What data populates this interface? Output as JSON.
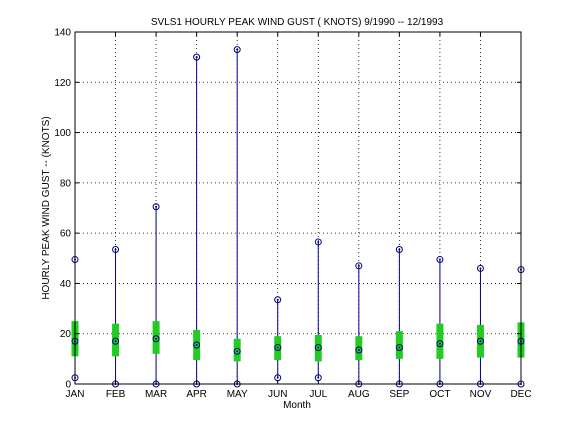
{
  "chart_data": {
    "type": "boxplot",
    "title": "SVLS1  HOURLY PEAK WIND GUST ( KNOTS) 9/1990 -- 12/1993",
    "xlabel": "Month",
    "ylabel": "HOURLY PEAK WIND GUST -- (KNOTS)",
    "ylim": [
      0,
      140
    ],
    "yticks": [
      0,
      20,
      40,
      60,
      80,
      100,
      120,
      140
    ],
    "grid": true,
    "categories": [
      "JAN",
      "FEB",
      "MAR",
      "APR",
      "MAY",
      "JUN",
      "JUL",
      "AUG",
      "SEP",
      "OCT",
      "NOV",
      "DEC"
    ],
    "min": [
      2.5,
      0,
      0,
      0,
      0,
      2.5,
      2.5,
      0,
      0,
      0,
      0,
      0
    ],
    "q1": [
      11,
      11,
      12,
      9.5,
      9,
      9.5,
      9,
      9.5,
      10,
      10,
      10.5,
      10.5
    ],
    "median": [
      17,
      17,
      18,
      15.5,
      13,
      14.5,
      14.5,
      13.5,
      14.5,
      16,
      17,
      17
    ],
    "q3": [
      25,
      24,
      25,
      21.5,
      18,
      19,
      19.5,
      19,
      21,
      24,
      23.5,
      24.5
    ],
    "max": [
      49.5,
      53.5,
      70.5,
      130,
      133,
      33.5,
      56.5,
      47,
      53.5,
      49.5,
      46,
      45.5
    ],
    "colors": {
      "whisker": "#00008b",
      "box": "#22cc22",
      "marker": "#000080",
      "grid": "#000000"
    }
  }
}
